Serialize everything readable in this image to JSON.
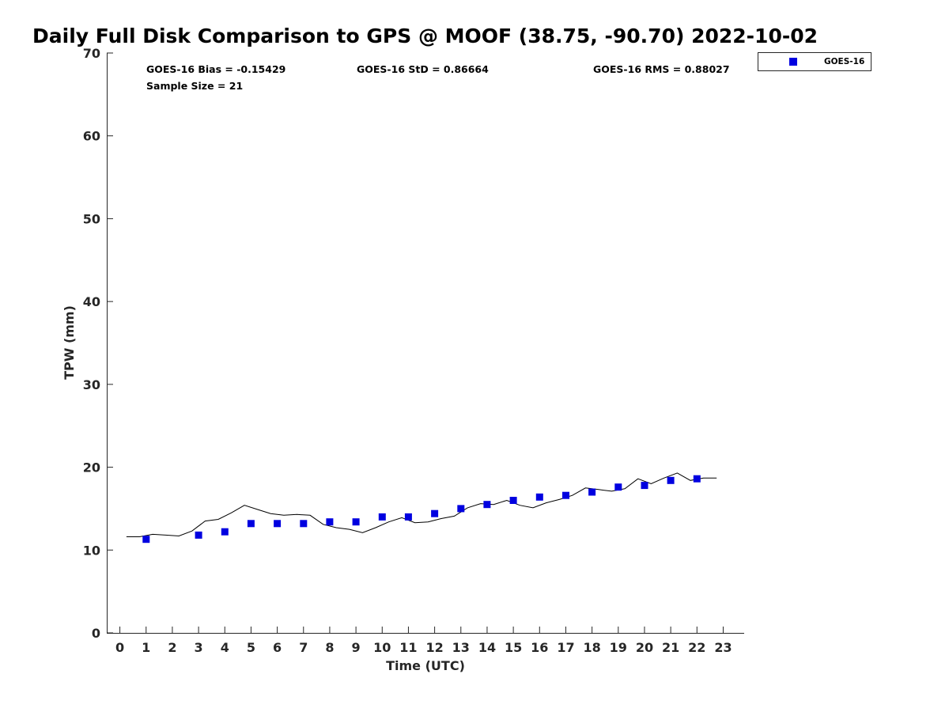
{
  "chart_data": {
    "type": "scatter",
    "title": "Daily Full Disk Comparison to GPS @ MOOF (38.75, -90.70) 2022-10-02",
    "xlabel": "Time (UTC)",
    "ylabel": "TPW (mm)",
    "xlim": [
      -0.5,
      23.8
    ],
    "ylim": [
      0,
      70
    ],
    "x_ticks": [
      0,
      1,
      2,
      3,
      4,
      5,
      6,
      7,
      8,
      9,
      10,
      11,
      12,
      13,
      14,
      15,
      16,
      17,
      18,
      19,
      20,
      21,
      22,
      23
    ],
    "y_ticks": [
      0,
      10,
      20,
      30,
      40,
      50,
      60,
      70
    ],
    "grid": false,
    "legend_position": "top-right",
    "stats": {
      "bias": "GOES-16 Bias = -0.15429",
      "std": "GOES-16 StD = 0.86664",
      "rms": "GOES-16 RMS = 0.88027",
      "sample_size": "Sample Size = 21"
    },
    "series": [
      {
        "name": "GOES-16",
        "marker": "square",
        "color": "#0000e0",
        "x": [
          1,
          3,
          4,
          5,
          6,
          7,
          8,
          9,
          10,
          11,
          12,
          13,
          14,
          15,
          16,
          17,
          18,
          19,
          20,
          21,
          22
        ],
        "y": [
          11.3,
          11.8,
          12.2,
          13.2,
          13.2,
          13.2,
          13.4,
          13.4,
          14.0,
          14.0,
          14.4,
          15.0,
          15.5,
          16.0,
          16.4,
          16.6,
          17.0,
          17.6,
          17.8,
          18.4,
          18.6
        ]
      },
      {
        "kind": "line",
        "color": "#000000",
        "x": [
          0.25,
          0.75,
          1.25,
          1.75,
          2.25,
          2.75,
          3.25,
          3.75,
          4.25,
          4.75,
          5.25,
          5.75,
          6.25,
          6.75,
          7.25,
          7.75,
          8.25,
          8.75,
          9.25,
          9.75,
          10.25,
          10.75,
          11.25,
          11.75,
          12.25,
          12.75,
          13.25,
          13.75,
          14.25,
          14.75,
          15.25,
          15.75,
          16.25,
          16.75,
          17.25,
          17.75,
          18.25,
          18.75,
          19.25,
          19.75,
          20.25,
          20.75,
          21.25,
          21.75,
          22.25,
          22.75
        ],
        "y": [
          11.6,
          11.6,
          11.9,
          11.8,
          11.7,
          12.3,
          13.5,
          13.7,
          14.5,
          15.4,
          14.9,
          14.4,
          14.2,
          14.3,
          14.2,
          13.1,
          12.7,
          12.5,
          12.1,
          12.7,
          13.4,
          13.9,
          13.3,
          13.4,
          13.8,
          14.1,
          15.1,
          15.6,
          15.5,
          16.0,
          15.4,
          15.1,
          15.7,
          16.1,
          16.6,
          17.5,
          17.3,
          17.1,
          17.4,
          18.6,
          18.0,
          18.7,
          19.3,
          18.4,
          18.7,
          18.7
        ]
      }
    ]
  }
}
